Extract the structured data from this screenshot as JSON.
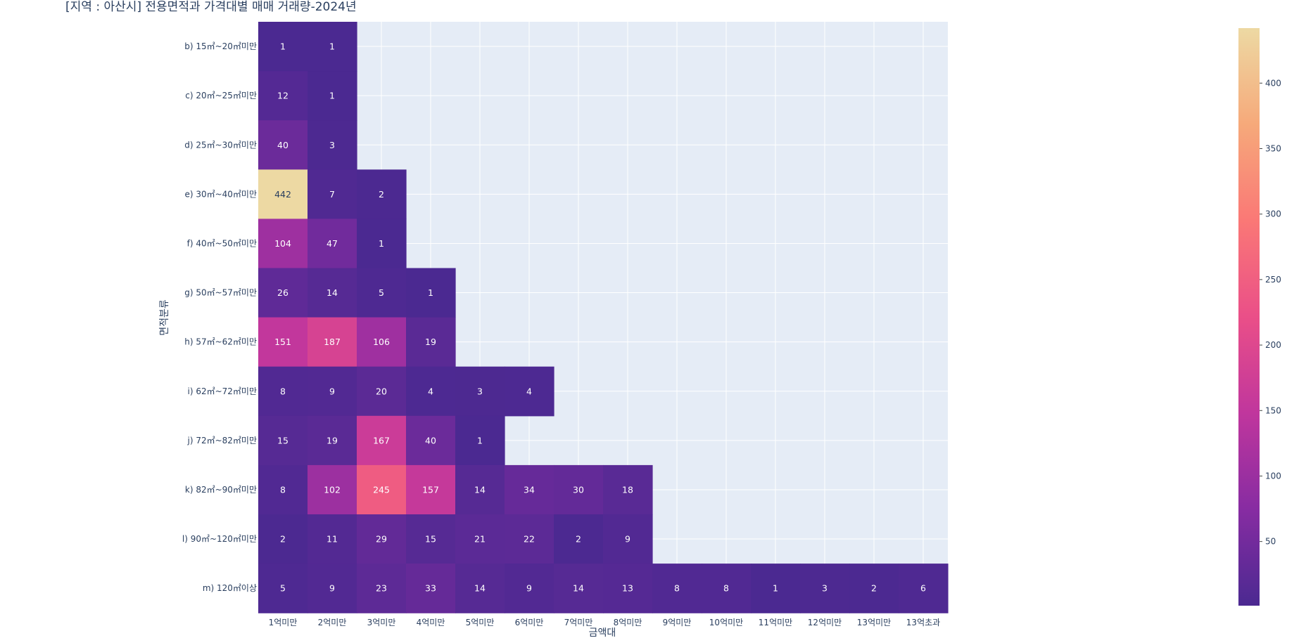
{
  "chart_data": {
    "type": "heatmap",
    "title": "[지역 : 아산시] 전용면적과 가격대별 매매 거래량-2024년",
    "xlabel": "금액대",
    "ylabel": "면적분류",
    "x_categories": [
      "1억미만",
      "2억미만",
      "3억미만",
      "4억미만",
      "5억미만",
      "6억미만",
      "7억미만",
      "8억미만",
      "9억미만",
      "10억미만",
      "11억미만",
      "12억미만",
      "13억미만",
      "13억초과"
    ],
    "y_categories": [
      "b) 15㎡~20㎡미만",
      "c) 20㎡~25㎡미만",
      "d) 25㎡~30㎡미만",
      "e) 30㎡~40㎡미만",
      "f) 40㎡~50㎡미만",
      "g) 50㎡~57㎡미만",
      "h) 57㎡~62㎡미만",
      "i) 62㎡~72㎡미만",
      "j) 72㎡~82㎡미만",
      "k) 82㎡~90㎡미만",
      "l) 90㎡~120㎡미만",
      "m) 120㎡이상"
    ],
    "z": [
      [
        1,
        1,
        null,
        null,
        null,
        null,
        null,
        null,
        null,
        null,
        null,
        null,
        null,
        null
      ],
      [
        12,
        1,
        null,
        null,
        null,
        null,
        null,
        null,
        null,
        null,
        null,
        null,
        null,
        null
      ],
      [
        40,
        3,
        null,
        null,
        null,
        null,
        null,
        null,
        null,
        null,
        null,
        null,
        null,
        null
      ],
      [
        442,
        7,
        2,
        null,
        null,
        null,
        null,
        null,
        null,
        null,
        null,
        null,
        null,
        null
      ],
      [
        104,
        47,
        1,
        null,
        null,
        null,
        null,
        null,
        null,
        null,
        null,
        null,
        null,
        null
      ],
      [
        26,
        14,
        5,
        1,
        null,
        null,
        null,
        null,
        null,
        null,
        null,
        null,
        null,
        null
      ],
      [
        151,
        187,
        106,
        19,
        null,
        null,
        null,
        null,
        null,
        null,
        null,
        null,
        null,
        null
      ],
      [
        8,
        9,
        20,
        4,
        3,
        4,
        null,
        null,
        null,
        null,
        null,
        null,
        null,
        null
      ],
      [
        15,
        19,
        167,
        40,
        1,
        null,
        null,
        null,
        null,
        null,
        null,
        null,
        null,
        null
      ],
      [
        8,
        102,
        245,
        157,
        14,
        34,
        30,
        18,
        null,
        null,
        null,
        null,
        null,
        null
      ],
      [
        2,
        11,
        29,
        15,
        21,
        22,
        2,
        9,
        null,
        null,
        null,
        null,
        null,
        null
      ],
      [
        5,
        9,
        23,
        33,
        14,
        9,
        14,
        13,
        8,
        8,
        1,
        3,
        2,
        6
      ]
    ],
    "zrange": [
      1,
      442
    ],
    "colorscale": "agsunset",
    "colorbar_ticks": [
      50,
      100,
      150,
      200,
      250,
      300,
      350,
      400
    ],
    "colors": {
      "plot_bg": "#e5ecf6",
      "grid": "#ffffff",
      "scale": [
        "#4b2991",
        "#872ca2",
        "#c0369d",
        "#ea4f88",
        "#fa7876",
        "#f6a97a",
        "#edd9a3"
      ]
    }
  }
}
